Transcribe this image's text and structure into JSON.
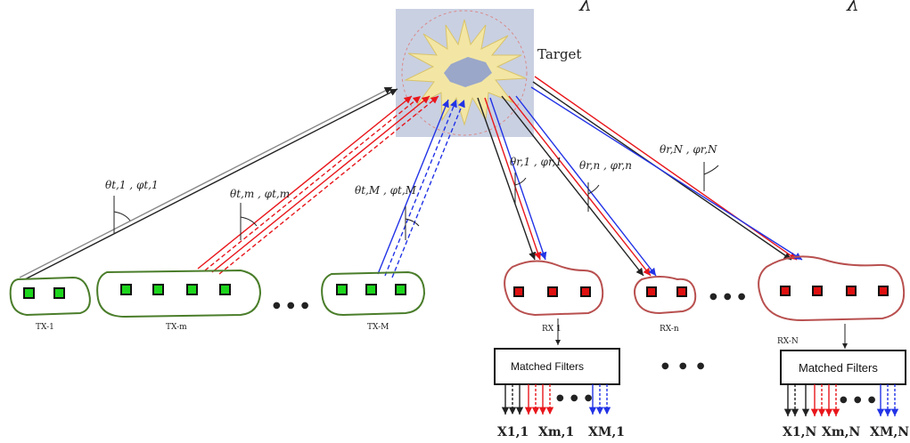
{
  "header": {
    "lambda_1": "λ",
    "lambda_2": "λ"
  },
  "target": {
    "label": "Target"
  },
  "transmitters": [
    {
      "label": "TX-1",
      "elements": 2
    },
    {
      "label": "TX-m",
      "elements": 4
    },
    {
      "label": "TX-M",
      "elements": 3
    }
  ],
  "receivers": [
    {
      "label": "RX 1",
      "elements": 3
    },
    {
      "label": "RX-n",
      "elements": 2
    },
    {
      "label": "RX-N",
      "elements": 4
    }
  ],
  "angles": {
    "tx1": "θt,1 , φt,1",
    "txm": "θt,m , φt,m",
    "txM": "θt,M , φt,M",
    "rx1": "θr,1 , φr,1",
    "rxn": "θr,n , φr,n",
    "rxN": "θr,N , φr,N"
  },
  "matched_filters": {
    "label": "Matched Filters"
  },
  "outputs_left": [
    "X1,1",
    "Xm,1",
    "XM,1"
  ],
  "outputs_right": [
    "X1,N",
    "Xm,N",
    "XM,N"
  ],
  "ellipsis": "● ● ●",
  "colors": {
    "tx_outline": "#4a7d2a",
    "rx_outline": "#b8504f",
    "tx_element": "#1cd61c",
    "rx_element": "#e01010",
    "red_ray": "#e8161b",
    "blue_ray": "#2233e6",
    "black_ray": "#222222"
  }
}
